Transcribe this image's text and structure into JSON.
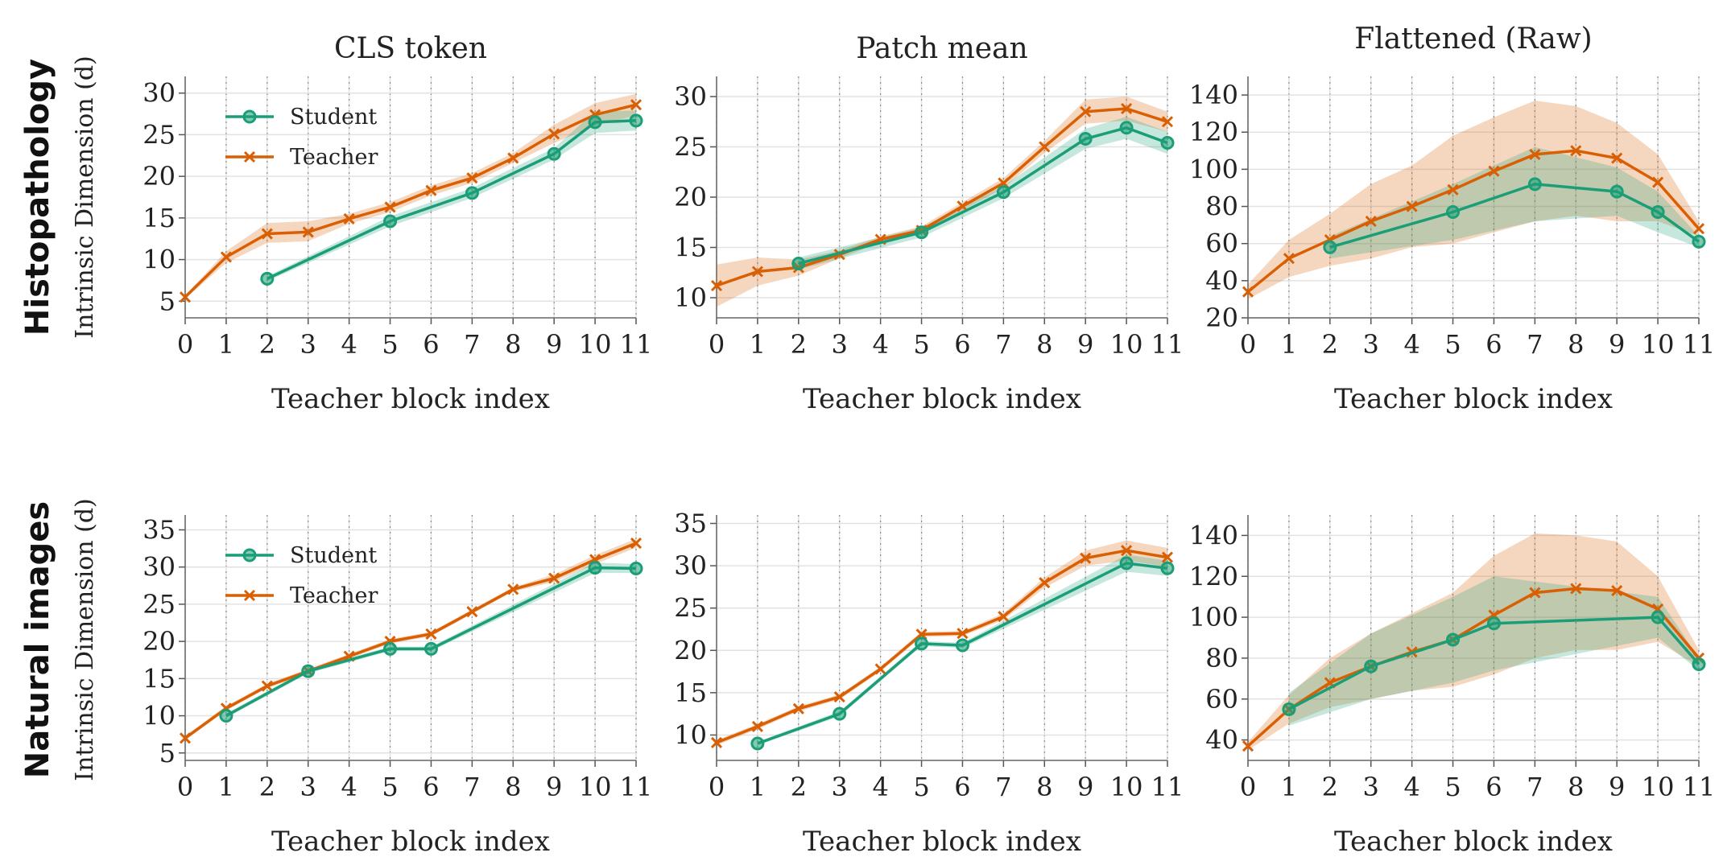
{
  "figure": {
    "row_labels": [
      "Histopathology",
      "Natural images"
    ],
    "ylabel": "Intrinsic Dimension (d)",
    "xlabel": "Teacher block index",
    "column_titles": [
      "CLS token",
      "Patch mean",
      "Flattened (Raw)"
    ],
    "legend": {
      "student": "Student",
      "teacher": "Teacher"
    },
    "colors": {
      "student": "#1b9e77",
      "teacher": "#d95f02"
    }
  },
  "chart_data": [
    {
      "type": "line",
      "title": "CLS token",
      "row": "Histopathology",
      "xlabel": "Teacher block index",
      "ylabel": "Intrinsic Dimension (d)",
      "xlim": [
        0,
        11
      ],
      "ylim": [
        3,
        32
      ],
      "yticks": [
        5,
        10,
        15,
        20,
        25,
        30
      ],
      "legend": "top-left",
      "series": [
        {
          "name": "Student",
          "x": [
            2,
            5,
            7,
            9,
            10,
            11
          ],
          "y": [
            7.7,
            14.6,
            18.0,
            22.7,
            26.5,
            26.7
          ],
          "lower": [
            7.4,
            14.0,
            17.4,
            22.0,
            25.2,
            25.5
          ],
          "upper": [
            8.0,
            15.2,
            18.6,
            23.4,
            27.8,
            27.9
          ]
        },
        {
          "name": "Teacher",
          "x": [
            0,
            1,
            2,
            3,
            4,
            5,
            6,
            7,
            8,
            9,
            10,
            11
          ],
          "y": [
            5.5,
            10.3,
            13.1,
            13.3,
            14.9,
            16.3,
            18.3,
            19.8,
            22.2,
            25.1,
            27.4,
            28.6
          ],
          "lower": [
            5.3,
            9.6,
            12.0,
            12.2,
            14.3,
            15.7,
            17.7,
            19.2,
            21.6,
            24.0,
            26.1,
            27.3
          ],
          "upper": [
            5.7,
            11.0,
            14.4,
            14.6,
            15.5,
            16.9,
            18.9,
            20.4,
            22.8,
            26.2,
            28.8,
            29.9
          ]
        }
      ]
    },
    {
      "type": "line",
      "title": "Patch mean",
      "row": "Histopathology",
      "xlabel": "Teacher block index",
      "ylabel": "",
      "xlim": [
        0,
        11
      ],
      "ylim": [
        8,
        32
      ],
      "yticks": [
        10,
        15,
        20,
        25,
        30
      ],
      "series": [
        {
          "name": "Student",
          "x": [
            2,
            5,
            7,
            9,
            10,
            11
          ],
          "y": [
            13.4,
            16.5,
            20.5,
            25.8,
            26.9,
            25.4
          ],
          "lower": [
            12.8,
            16.0,
            19.9,
            24.8,
            25.8,
            24.3
          ],
          "upper": [
            14.0,
            17.0,
            21.1,
            26.8,
            28.0,
            26.5
          ]
        },
        {
          "name": "Teacher",
          "x": [
            0,
            1,
            2,
            3,
            4,
            5,
            6,
            7,
            8,
            9,
            10,
            11
          ],
          "y": [
            11.2,
            12.6,
            13.0,
            14.3,
            15.8,
            16.7,
            19.1,
            21.4,
            25.0,
            28.5,
            28.8,
            27.5
          ],
          "lower": [
            9.1,
            11.2,
            12.2,
            13.9,
            15.5,
            16.3,
            18.7,
            20.9,
            24.4,
            27.3,
            27.6,
            26.5
          ],
          "upper": [
            13.3,
            14.0,
            13.8,
            14.7,
            16.1,
            17.1,
            19.5,
            21.9,
            25.6,
            29.7,
            30.0,
            28.5
          ]
        }
      ]
    },
    {
      "type": "line",
      "title": "Flattened (Raw)",
      "row": "Histopathology",
      "xlabel": "Teacher block index",
      "ylabel": "",
      "xlim": [
        0,
        11
      ],
      "ylim": [
        20,
        150
      ],
      "yticks": [
        20,
        40,
        60,
        80,
        100,
        120,
        140
      ],
      "series": [
        {
          "name": "Student",
          "x": [
            2,
            5,
            7,
            9,
            10,
            11
          ],
          "y": [
            58,
            77,
            92,
            88,
            77,
            61
          ],
          "lower": [
            52,
            62,
            72,
            75,
            66,
            58
          ],
          "upper": [
            64,
            92,
            112,
            101,
            88,
            64
          ]
        },
        {
          "name": "Teacher",
          "x": [
            0,
            1,
            2,
            3,
            4,
            5,
            6,
            7,
            8,
            9,
            10,
            11
          ],
          "y": [
            34,
            52,
            62,
            72,
            80,
            89,
            99,
            108,
            110,
            106,
            93,
            68
          ],
          "lower": [
            30,
            42,
            48,
            52,
            58,
            60,
            66,
            72,
            75,
            72,
            72,
            64
          ],
          "upper": [
            38,
            62,
            76,
            92,
            102,
            118,
            128,
            137,
            134,
            125,
            108,
            72
          ]
        }
      ]
    },
    {
      "type": "line",
      "title": "",
      "row": "Natural images",
      "xlabel": "Teacher block index",
      "ylabel": "Intrinsic Dimension (d)",
      "xlim": [
        0,
        11
      ],
      "ylim": [
        4,
        37
      ],
      "yticks": [
        5,
        10,
        15,
        20,
        25,
        30,
        35
      ],
      "legend": "top-left",
      "series": [
        {
          "name": "Student",
          "x": [
            1,
            3,
            5,
            6,
            10,
            11
          ],
          "y": [
            10.0,
            16.0,
            19.0,
            19.0,
            29.9,
            29.8
          ],
          "lower": [
            9.7,
            15.7,
            18.7,
            18.7,
            29.2,
            29.2
          ],
          "upper": [
            10.3,
            16.3,
            19.3,
            19.3,
            30.6,
            30.4
          ]
        },
        {
          "name": "Teacher",
          "x": [
            0,
            1,
            2,
            3,
            4,
            5,
            6,
            7,
            8,
            9,
            10,
            11
          ],
          "y": [
            7.0,
            11.0,
            14.0,
            16.0,
            18.0,
            20.0,
            21.0,
            24.0,
            27.0,
            28.5,
            31.0,
            33.2
          ],
          "lower": [
            6.7,
            10.7,
            13.7,
            15.7,
            17.7,
            19.7,
            20.7,
            23.7,
            26.7,
            28.0,
            30.4,
            32.6
          ],
          "upper": [
            7.3,
            11.3,
            14.3,
            16.3,
            18.3,
            20.3,
            21.3,
            24.3,
            27.3,
            29.0,
            31.6,
            33.8
          ]
        }
      ]
    },
    {
      "type": "line",
      "title": "",
      "row": "Natural images",
      "xlabel": "Teacher block index",
      "ylabel": "",
      "xlim": [
        0,
        11
      ],
      "ylim": [
        7,
        36
      ],
      "yticks": [
        10,
        15,
        20,
        25,
        30,
        35
      ],
      "series": [
        {
          "name": "Student",
          "x": [
            1,
            3,
            5,
            6,
            10,
            11
          ],
          "y": [
            9.0,
            12.5,
            20.8,
            20.6,
            30.3,
            29.7
          ],
          "lower": [
            8.8,
            12.2,
            20.5,
            20.3,
            29.3,
            28.8
          ],
          "upper": [
            9.2,
            12.8,
            21.1,
            20.9,
            31.3,
            30.6
          ]
        },
        {
          "name": "Teacher",
          "x": [
            0,
            1,
            2,
            3,
            4,
            5,
            6,
            7,
            8,
            9,
            10,
            11
          ],
          "y": [
            9.1,
            11.0,
            13.1,
            14.5,
            17.8,
            21.9,
            22.0,
            24.0,
            28.0,
            30.9,
            31.8,
            31.0
          ],
          "lower": [
            8.8,
            10.7,
            12.8,
            14.2,
            17.5,
            21.6,
            21.7,
            23.6,
            27.4,
            30.0,
            30.6,
            29.9
          ],
          "upper": [
            9.4,
            11.3,
            13.4,
            14.8,
            18.1,
            22.2,
            22.3,
            24.4,
            28.6,
            31.8,
            33.0,
            32.1
          ]
        }
      ]
    },
    {
      "type": "line",
      "title": "",
      "row": "Natural images",
      "xlabel": "Teacher block index",
      "ylabel": "",
      "xlim": [
        0,
        11
      ],
      "ylim": [
        30,
        150
      ],
      "yticks": [
        40,
        60,
        80,
        100,
        120,
        140
      ],
      "series": [
        {
          "name": "Student",
          "x": [
            1,
            3,
            5,
            6,
            10,
            11
          ],
          "y": [
            55,
            76,
            89,
            97,
            100,
            77
          ],
          "lower": [
            47,
            60,
            68,
            74,
            90,
            74
          ],
          "upper": [
            63,
            92,
            110,
            120,
            110,
            80
          ]
        },
        {
          "name": "Teacher",
          "x": [
            0,
            1,
            2,
            3,
            4,
            5,
            6,
            7,
            8,
            9,
            10,
            11
          ],
          "y": [
            37,
            55,
            68,
            76,
            83,
            89,
            101,
            112,
            114,
            113,
            104,
            80
          ],
          "lower": [
            35,
            48,
            56,
            60,
            64,
            66,
            72,
            80,
            84,
            84,
            88,
            76
          ],
          "upper": [
            39,
            62,
            80,
            92,
            102,
            112,
            130,
            141,
            140,
            137,
            120,
            84
          ]
        }
      ]
    }
  ]
}
